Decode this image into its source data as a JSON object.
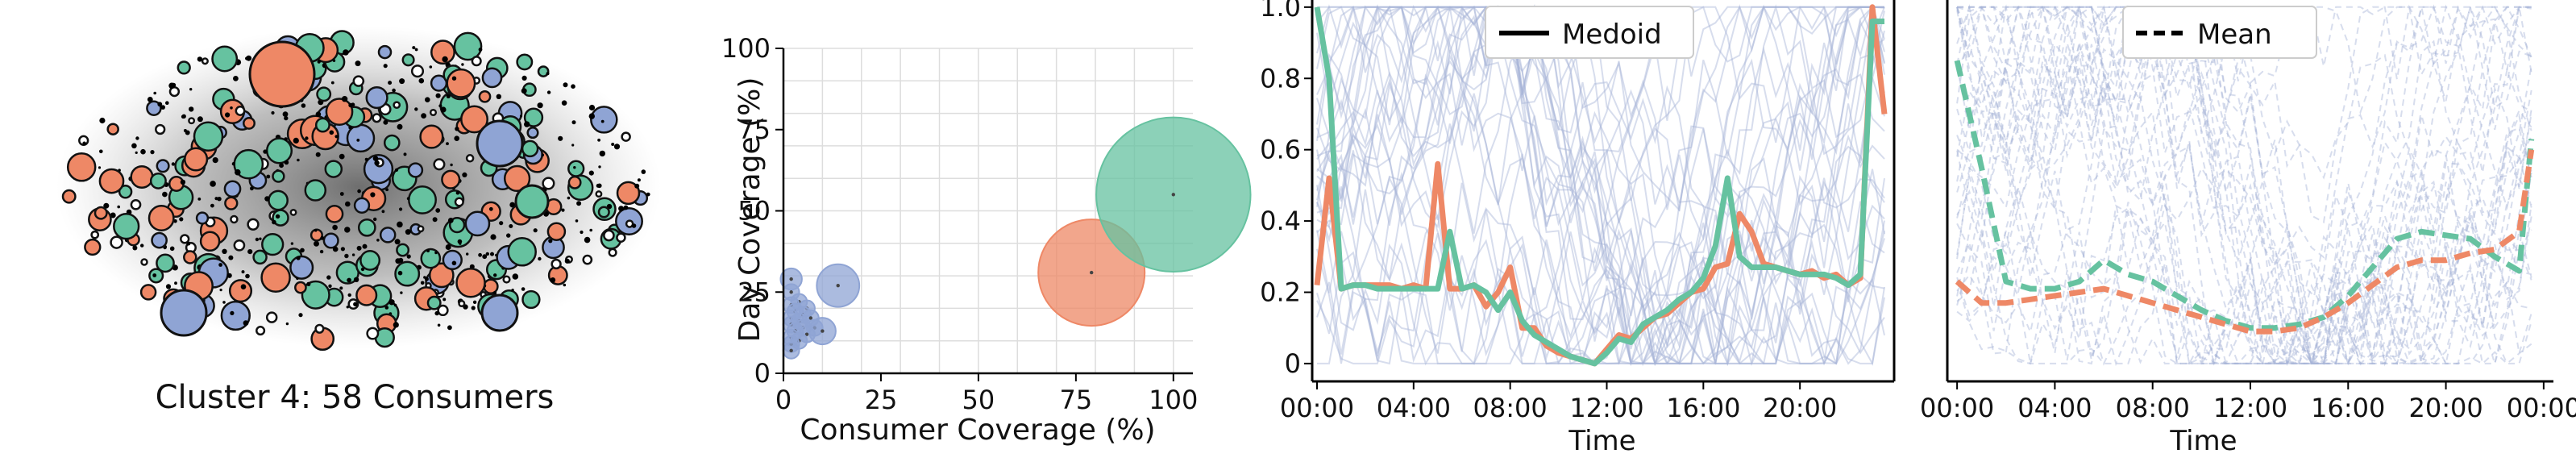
{
  "colors": {
    "orange": "#ee8866",
    "green": "#66c2a0",
    "blue": "#8fa4d4",
    "faint_line": "#a6b4d8",
    "grid": "#dddddd",
    "node_edge": "#111111"
  },
  "network": {
    "caption": "Cluster 4: 58 Consumers"
  },
  "chart_data": [
    {
      "type": "scatter",
      "panel": "bubble",
      "title": "",
      "xlabel": "Consumer Coverage (%)",
      "ylabel": "Day Coverage (%)",
      "xlim": [
        0,
        105
      ],
      "ylim": [
        0,
        100
      ],
      "xticks": [
        "0",
        "25",
        "50",
        "75",
        "100"
      ],
      "yticks": [
        "0",
        "25",
        "50",
        "75",
        "100"
      ],
      "grid": true,
      "series": [
        {
          "color": "blue",
          "points": [
            {
              "x": 14,
              "y": 27,
              "size": 8
            },
            {
              "x": 2,
              "y": 29,
              "size": 4
            },
            {
              "x": 2,
              "y": 25,
              "size": 3
            },
            {
              "x": 4,
              "y": 22,
              "size": 3
            },
            {
              "x": 2,
              "y": 21,
              "size": 3
            },
            {
              "x": 6,
              "y": 20,
              "size": 3
            },
            {
              "x": 3,
              "y": 19,
              "size": 3
            },
            {
              "x": 5,
              "y": 18,
              "size": 3
            },
            {
              "x": 2,
              "y": 17,
              "size": 3
            },
            {
              "x": 7,
              "y": 17,
              "size": 3
            },
            {
              "x": 4,
              "y": 16,
              "size": 3
            },
            {
              "x": 2,
              "y": 15,
              "size": 3
            },
            {
              "x": 5,
              "y": 14,
              "size": 3
            },
            {
              "x": 8,
              "y": 14,
              "size": 3
            },
            {
              "x": 10,
              "y": 13,
              "size": 5
            },
            {
              "x": 3,
              "y": 13,
              "size": 3
            },
            {
              "x": 6,
              "y": 12,
              "size": 3
            },
            {
              "x": 2,
              "y": 11,
              "size": 3
            },
            {
              "x": 4,
              "y": 10,
              "size": 3
            },
            {
              "x": 2,
              "y": 9,
              "size": 3
            },
            {
              "x": 2,
              "y": 7,
              "size": 3
            }
          ]
        },
        {
          "color": "orange",
          "points": [
            {
              "x": 79,
              "y": 31,
              "size": 20
            }
          ]
        },
        {
          "color": "green",
          "points": [
            {
              "x": 100,
              "y": 55,
              "size": 29
            }
          ]
        }
      ]
    },
    {
      "type": "line",
      "panel": "medoid",
      "title": "",
      "xlabel": "Time",
      "ylabel": "",
      "xlim": [
        -0.2,
        23.9
      ],
      "ylim": [
        -0.05,
        1.02
      ],
      "xticks": [
        "00:00",
        "04:00",
        "08:00",
        "12:00",
        "16:00",
        "20:00"
      ],
      "yticks": [
        "0",
        "0.2",
        "0.4",
        "0.6",
        "0.8",
        "1.0"
      ],
      "legend": {
        "position": "top-center",
        "entries": [
          {
            "label": "Medoid",
            "style": "solid"
          }
        ]
      },
      "series": [
        {
          "color": "orange",
          "style": "solid",
          "x": [
            0,
            0.5,
            1,
            1.5,
            2,
            2.5,
            3,
            3.5,
            4,
            4.5,
            5,
            5.5,
            6,
            6.5,
            7,
            7.5,
            8,
            8.5,
            9,
            9.5,
            10,
            10.5,
            11,
            11.5,
            12,
            12.5,
            13,
            13.5,
            14,
            14.5,
            15,
            15.5,
            16,
            16.5,
            17,
            17.5,
            18,
            18.5,
            19,
            19.5,
            20,
            20.5,
            21,
            21.5,
            22,
            22.5,
            23,
            23.5
          ],
          "y": [
            0.22,
            0.52,
            0.21,
            0.22,
            0.22,
            0.22,
            0.22,
            0.21,
            0.22,
            0.21,
            0.56,
            0.21,
            0.21,
            0.22,
            0.16,
            0.2,
            0.27,
            0.1,
            0.1,
            0.05,
            0.03,
            0.02,
            0.01,
            0.0,
            0.04,
            0.08,
            0.07,
            0.1,
            0.13,
            0.14,
            0.17,
            0.2,
            0.21,
            0.27,
            0.28,
            0.42,
            0.37,
            0.28,
            0.27,
            0.26,
            0.25,
            0.26,
            0.24,
            0.25,
            0.22,
            0.24,
            1.0,
            0.7
          ]
        },
        {
          "color": "green",
          "style": "solid",
          "x": [
            0,
            0.5,
            1,
            1.5,
            2,
            2.5,
            3,
            3.5,
            4,
            4.5,
            5,
            5.5,
            6,
            6.5,
            7,
            7.5,
            8,
            8.5,
            9,
            9.5,
            10,
            10.5,
            11,
            11.5,
            12,
            12.5,
            13,
            13.5,
            14,
            14.5,
            15,
            15.5,
            16,
            16.5,
            17,
            17.5,
            18,
            18.5,
            19,
            19.5,
            20,
            20.5,
            21,
            21.5,
            22,
            22.5,
            23,
            23.5
          ],
          "y": [
            1.0,
            0.8,
            0.21,
            0.22,
            0.22,
            0.21,
            0.21,
            0.21,
            0.21,
            0.21,
            0.21,
            0.37,
            0.21,
            0.22,
            0.2,
            0.15,
            0.2,
            0.12,
            0.08,
            0.06,
            0.04,
            0.02,
            0.01,
            0.0,
            0.03,
            0.07,
            0.06,
            0.11,
            0.13,
            0.15,
            0.18,
            0.2,
            0.24,
            0.33,
            0.52,
            0.3,
            0.27,
            0.27,
            0.27,
            0.26,
            0.25,
            0.25,
            0.25,
            0.24,
            0.22,
            0.25,
            0.96,
            0.96
          ]
        }
      ]
    },
    {
      "type": "line",
      "panel": "mean",
      "title": "",
      "xlabel": "Time",
      "ylabel": "",
      "xlim": [
        -0.4,
        24.4
      ],
      "ylim": [
        -0.05,
        1.02
      ],
      "xticks": [
        "00:00",
        "04:00",
        "08:00",
        "12:00",
        "16:00",
        "20:00",
        "00:00"
      ],
      "legend": {
        "position": "top-center",
        "entries": [
          {
            "label": "Mean",
            "style": "dashed"
          }
        ]
      },
      "series": [
        {
          "color": "green",
          "style": "dashed",
          "x": [
            0,
            1,
            2,
            3,
            4,
            5,
            6,
            7,
            8,
            9,
            10,
            11,
            12,
            13,
            14,
            15,
            16,
            17,
            18,
            19,
            20,
            21,
            22,
            23,
            23.5
          ],
          "y": [
            0.85,
            0.55,
            0.23,
            0.21,
            0.21,
            0.23,
            0.29,
            0.25,
            0.23,
            0.19,
            0.15,
            0.12,
            0.1,
            0.1,
            0.11,
            0.13,
            0.19,
            0.27,
            0.35,
            0.37,
            0.36,
            0.35,
            0.3,
            0.26,
            0.63
          ]
        },
        {
          "color": "orange",
          "style": "dashed",
          "x": [
            0,
            1,
            2,
            3,
            4,
            5,
            6,
            7,
            8,
            9,
            10,
            11,
            12,
            13,
            14,
            15,
            16,
            17,
            18,
            19,
            20,
            21,
            22,
            23,
            23.5
          ],
          "y": [
            0.23,
            0.17,
            0.17,
            0.18,
            0.19,
            0.2,
            0.21,
            0.19,
            0.17,
            0.15,
            0.13,
            0.11,
            0.09,
            0.09,
            0.1,
            0.13,
            0.17,
            0.22,
            0.27,
            0.29,
            0.29,
            0.31,
            0.32,
            0.37,
            0.6
          ]
        }
      ]
    }
  ]
}
